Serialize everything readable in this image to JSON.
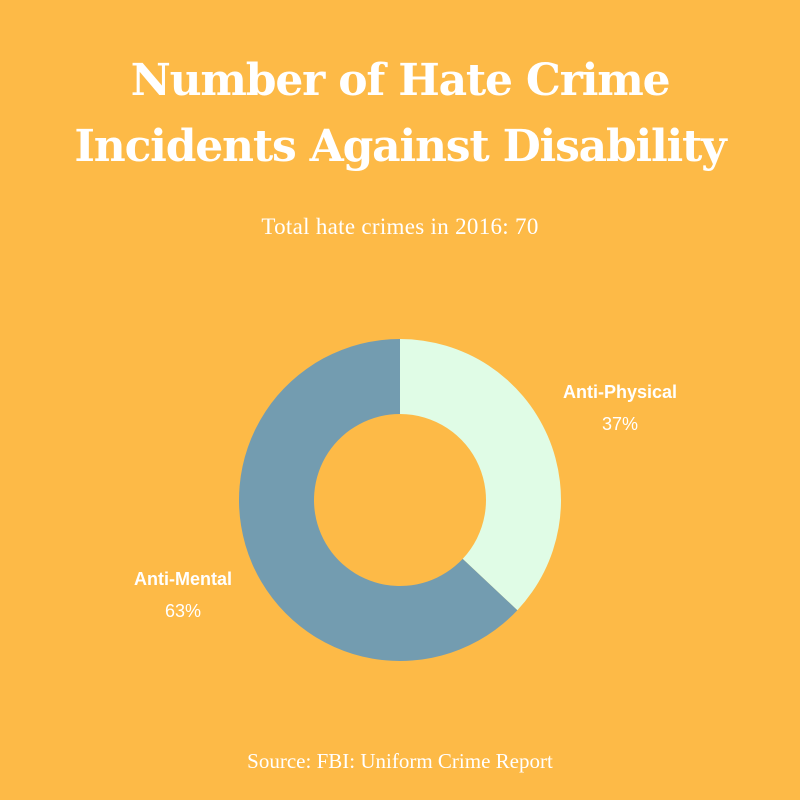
{
  "title_lines": [
    "Number of Hate Crime",
    "Incidents Against Disability"
  ],
  "subtitle": "Total hate crimes in 2016: 70",
  "source": "Source: FBI: Uniform Crime Report",
  "colors": {
    "background": "#FDBA47",
    "text": "#FFFFFF"
  },
  "chart_data": {
    "type": "pie",
    "donut": true,
    "title": "Number of Hate Crime Incidents Against Disability",
    "subtitle": "Total hate crimes in 2016: 70",
    "slices": [
      {
        "label": "Anti-Physical",
        "value": 37,
        "value_label": "37%",
        "color": "#E0FCE6"
      },
      {
        "label": "Anti-Mental",
        "value": 63,
        "value_label": "63%",
        "color": "#739CB0"
      }
    ],
    "start": "top",
    "direction": "clockwise"
  }
}
